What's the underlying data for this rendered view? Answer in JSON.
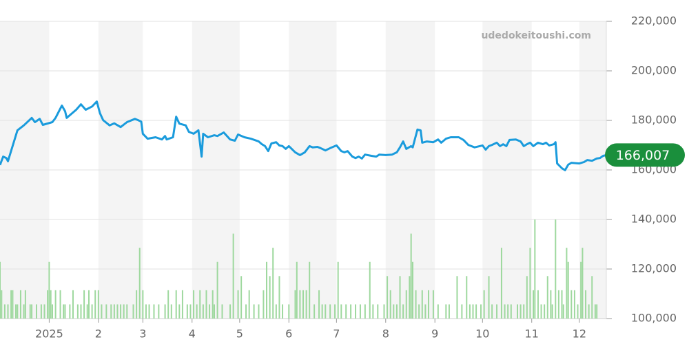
{
  "chart_data": {
    "type": "line",
    "watermark": "udedokeitoushi.com",
    "xlim": [
      0,
      382
    ],
    "xticks": [
      {
        "value": 31,
        "label": "2025"
      },
      {
        "value": 62,
        "label": "2"
      },
      {
        "value": 90,
        "label": "3"
      },
      {
        "value": 121,
        "label": "4"
      },
      {
        "value": 151,
        "label": "5"
      },
      {
        "value": 182,
        "label": "6"
      },
      {
        "value": 212,
        "label": "7"
      },
      {
        "value": 243,
        "label": "8"
      },
      {
        "value": 274,
        "label": "9"
      },
      {
        "value": 304,
        "label": "10"
      },
      {
        "value": 335,
        "label": "11"
      },
      {
        "value": 365,
        "label": "12"
      }
    ],
    "ylim": [
      100000,
      220000
    ],
    "yticks": [
      {
        "value": 100000,
        "label": "100,000"
      },
      {
        "value": 120000,
        "label": "120,000"
      },
      {
        "value": 140000,
        "label": "140,000"
      },
      {
        "value": 160000,
        "label": "160,000"
      },
      {
        "value": 180000,
        "label": "180,000"
      },
      {
        "value": 200000,
        "label": "200,000"
      },
      {
        "value": 220000,
        "label": "220,000"
      }
    ],
    "y2lim": [
      0,
      21
    ],
    "grid": true,
    "series": [
      {
        "color": "#1a9bdc",
        "last_label": "166,007",
        "label_color": "#1a8f3c",
        "x": [
          0,
          2,
          4,
          5,
          11,
          15,
          20,
          22,
          25,
          27,
          33,
          35,
          39,
          41,
          42,
          48,
          51,
          54,
          58,
          61,
          63,
          65,
          69,
          72,
          76,
          80,
          85,
          87,
          89,
          90,
          93,
          98,
          102,
          104,
          105,
          109,
          111,
          113,
          117,
          119,
          122,
          125,
          127,
          128,
          131,
          135,
          137,
          141,
          145,
          148,
          150,
          154,
          158,
          163,
          165,
          167,
          169,
          171,
          174,
          176,
          178,
          180,
          182,
          186,
          189,
          192,
          195,
          197,
          200,
          202,
          205,
          208,
          212,
          215,
          217,
          219,
          222,
          224,
          226,
          228,
          230,
          234,
          237,
          239,
          243,
          247,
          250,
          252,
          254,
          256,
          259,
          260,
          263,
          265,
          266,
          269,
          273,
          276,
          278,
          281,
          284,
          289,
          292,
          295,
          299,
          304,
          306,
          308,
          310,
          313,
          315,
          317,
          319,
          321,
          325,
          328,
          330,
          332,
          334,
          336,
          339,
          342,
          344,
          346,
          349,
          350,
          351,
          354,
          356,
          358,
          360,
          365,
          368,
          370,
          373,
          376,
          378,
          380,
          382
        ],
        "values": [
          162000,
          165400,
          164800,
          163500,
          176000,
          178000,
          181000,
          179300,
          180600,
          178200,
          179300,
          181000,
          186000,
          183700,
          181000,
          184300,
          186500,
          184300,
          185600,
          187600,
          182900,
          180100,
          178000,
          178800,
          177300,
          179300,
          180600,
          180100,
          179500,
          174600,
          172600,
          173200,
          172300,
          173700,
          172300,
          173200,
          181500,
          178700,
          178000,
          175400,
          174600,
          176000,
          165400,
          174600,
          173200,
          174000,
          173700,
          175100,
          172300,
          171800,
          174300,
          173200,
          172600,
          171500,
          170400,
          169600,
          167600,
          170700,
          171200,
          169900,
          169600,
          168500,
          169600,
          167100,
          166000,
          167100,
          169600,
          169100,
          169300,
          168800,
          167900,
          168800,
          169900,
          167600,
          167100,
          167600,
          165400,
          164800,
          165400,
          164600,
          166200,
          165700,
          165400,
          166200,
          166000,
          166200,
          167100,
          169100,
          171500,
          168500,
          169600,
          169100,
          176300,
          176000,
          171000,
          171500,
          171200,
          172300,
          171000,
          172600,
          173200,
          173200,
          172100,
          170100,
          169100,
          169900,
          168200,
          169600,
          170100,
          171000,
          169600,
          170400,
          169600,
          172100,
          172300,
          171500,
          169600,
          170400,
          171000,
          169600,
          171000,
          170400,
          171000,
          169900,
          170400,
          171200,
          162600,
          160700,
          159900,
          162100,
          162900,
          162600,
          163200,
          164000,
          163700,
          164600,
          164800,
          165700,
          166007
        ]
      },
      {
        "type": "bar",
        "axis": "y2",
        "color": "#9ed89e",
        "x": [
          0,
          1,
          3,
          5,
          7,
          8,
          10,
          11,
          13,
          15,
          16,
          19,
          20,
          23,
          26,
          28,
          30,
          31,
          32,
          33,
          35,
          38,
          40,
          41,
          44,
          46,
          49,
          51,
          53,
          55,
          56,
          58,
          60,
          62,
          64,
          67,
          70,
          72,
          74,
          76,
          78,
          80,
          84,
          86,
          88,
          90,
          92,
          94,
          97,
          100,
          104,
          106,
          108,
          111,
          113,
          115,
          118,
          120,
          122,
          124,
          126,
          128,
          130,
          132,
          134,
          135,
          137,
          140,
          145,
          147,
          150,
          152,
          155,
          157,
          160,
          163,
          166,
          168,
          170,
          172,
          174,
          176,
          178,
          182,
          186,
          187,
          189,
          191,
          193,
          195,
          198,
          201,
          203,
          205,
          208,
          211,
          213,
          215,
          218,
          221,
          224,
          227,
          230,
          233,
          235,
          238,
          242,
          244,
          246,
          248,
          250,
          252,
          254,
          256,
          258,
          259,
          260,
          262,
          264,
          266,
          268,
          270,
          273,
          276,
          281,
          283,
          288,
          291,
          294,
          296,
          298,
          300,
          303,
          305,
          308,
          310,
          313,
          316,
          318,
          320,
          322,
          326,
          328,
          330,
          332,
          334,
          336,
          337,
          339,
          341,
          343,
          345,
          347,
          348,
          350,
          352,
          354,
          355,
          357,
          358,
          360,
          362,
          364,
          366,
          367,
          369,
          371,
          373,
          375,
          376
        ],
        "values": [
          4,
          2,
          1,
          1,
          2,
          2,
          1,
          1,
          2,
          1,
          2,
          1,
          1,
          1,
          1,
          1,
          2,
          4,
          2,
          1,
          2,
          2,
          1,
          1,
          1,
          2,
          1,
          1,
          2,
          1,
          2,
          1,
          2,
          2,
          1,
          1,
          1,
          1,
          1,
          1,
          1,
          1,
          1,
          2,
          5,
          2,
          1,
          1,
          1,
          1,
          1,
          2,
          1,
          2,
          1,
          2,
          1,
          1,
          2,
          1,
          2,
          1,
          2,
          1,
          2,
          1,
          4,
          1,
          1,
          6,
          2,
          3,
          1,
          2,
          1,
          1,
          2,
          4,
          3,
          5,
          1,
          3,
          1,
          1,
          2,
          4,
          2,
          2,
          2,
          4,
          1,
          2,
          1,
          1,
          1,
          1,
          4,
          1,
          1,
          1,
          1,
          1,
          1,
          4,
          1,
          1,
          1,
          3,
          2,
          1,
          1,
          3,
          1,
          2,
          3,
          6,
          4,
          2,
          1,
          2,
          1,
          2,
          2,
          1,
          1,
          1,
          3,
          1,
          3,
          1,
          1,
          1,
          1,
          2,
          3,
          1,
          1,
          5,
          1,
          1,
          1,
          1,
          1,
          1,
          3,
          5,
          2,
          7,
          2,
          1,
          1,
          3,
          2,
          1,
          7,
          2,
          2,
          1,
          5,
          4,
          2,
          2,
          1,
          4,
          5,
          2,
          1,
          3,
          1,
          1
        ]
      }
    ]
  }
}
